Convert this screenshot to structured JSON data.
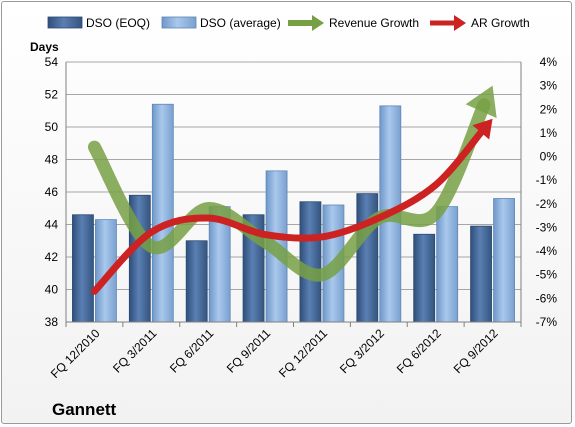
{
  "chart_data": {
    "type": "bar",
    "company": "Gannett",
    "categories": [
      "FQ 12/2010",
      "FQ 3/2011",
      "FQ 6/2011",
      "FQ 9/2011",
      "FQ 12/2011",
      "FQ 3/2012",
      "FQ 6/2012",
      "FQ 9/2012"
    ],
    "series": [
      {
        "name": "DSO (EOQ)",
        "axis": "left",
        "kind": "bar",
        "color": "#4a6fa5",
        "values": [
          44.6,
          45.8,
          43.0,
          44.6,
          45.4,
          45.9,
          43.4,
          43.9
        ]
      },
      {
        "name": "DSO (average)",
        "axis": "left",
        "kind": "bar",
        "color": "#8db3e2",
        "values": [
          44.3,
          51.4,
          45.1,
          47.3,
          45.2,
          51.3,
          45.1,
          45.6
        ]
      },
      {
        "name": "Revenue Growth",
        "axis": "right",
        "kind": "line",
        "color": "#77a044",
        "values": [
          0.4,
          -3.8,
          -2.2,
          -3.6,
          -5.0,
          -2.6,
          -2.4,
          3.0
        ]
      },
      {
        "name": "AR Growth",
        "axis": "right",
        "kind": "line",
        "color": "#cc2222",
        "values": [
          -5.7,
          -3.2,
          -2.6,
          -3.3,
          -3.4,
          -2.6,
          -1.2,
          1.6
        ]
      }
    ],
    "ylabel": "Days",
    "ylim": [
      38,
      54
    ],
    "yticks": [
      "38",
      "40",
      "42",
      "44",
      "46",
      "48",
      "50",
      "52",
      "54"
    ],
    "y2lim": [
      -7,
      4
    ],
    "y2ticks": [
      "-7%",
      "-6%",
      "-5%",
      "-4%",
      "-3%",
      "-2%",
      "-1%",
      "0%",
      "1%",
      "2%",
      "3%",
      "4%"
    ],
    "grid": true,
    "legend": "top"
  }
}
